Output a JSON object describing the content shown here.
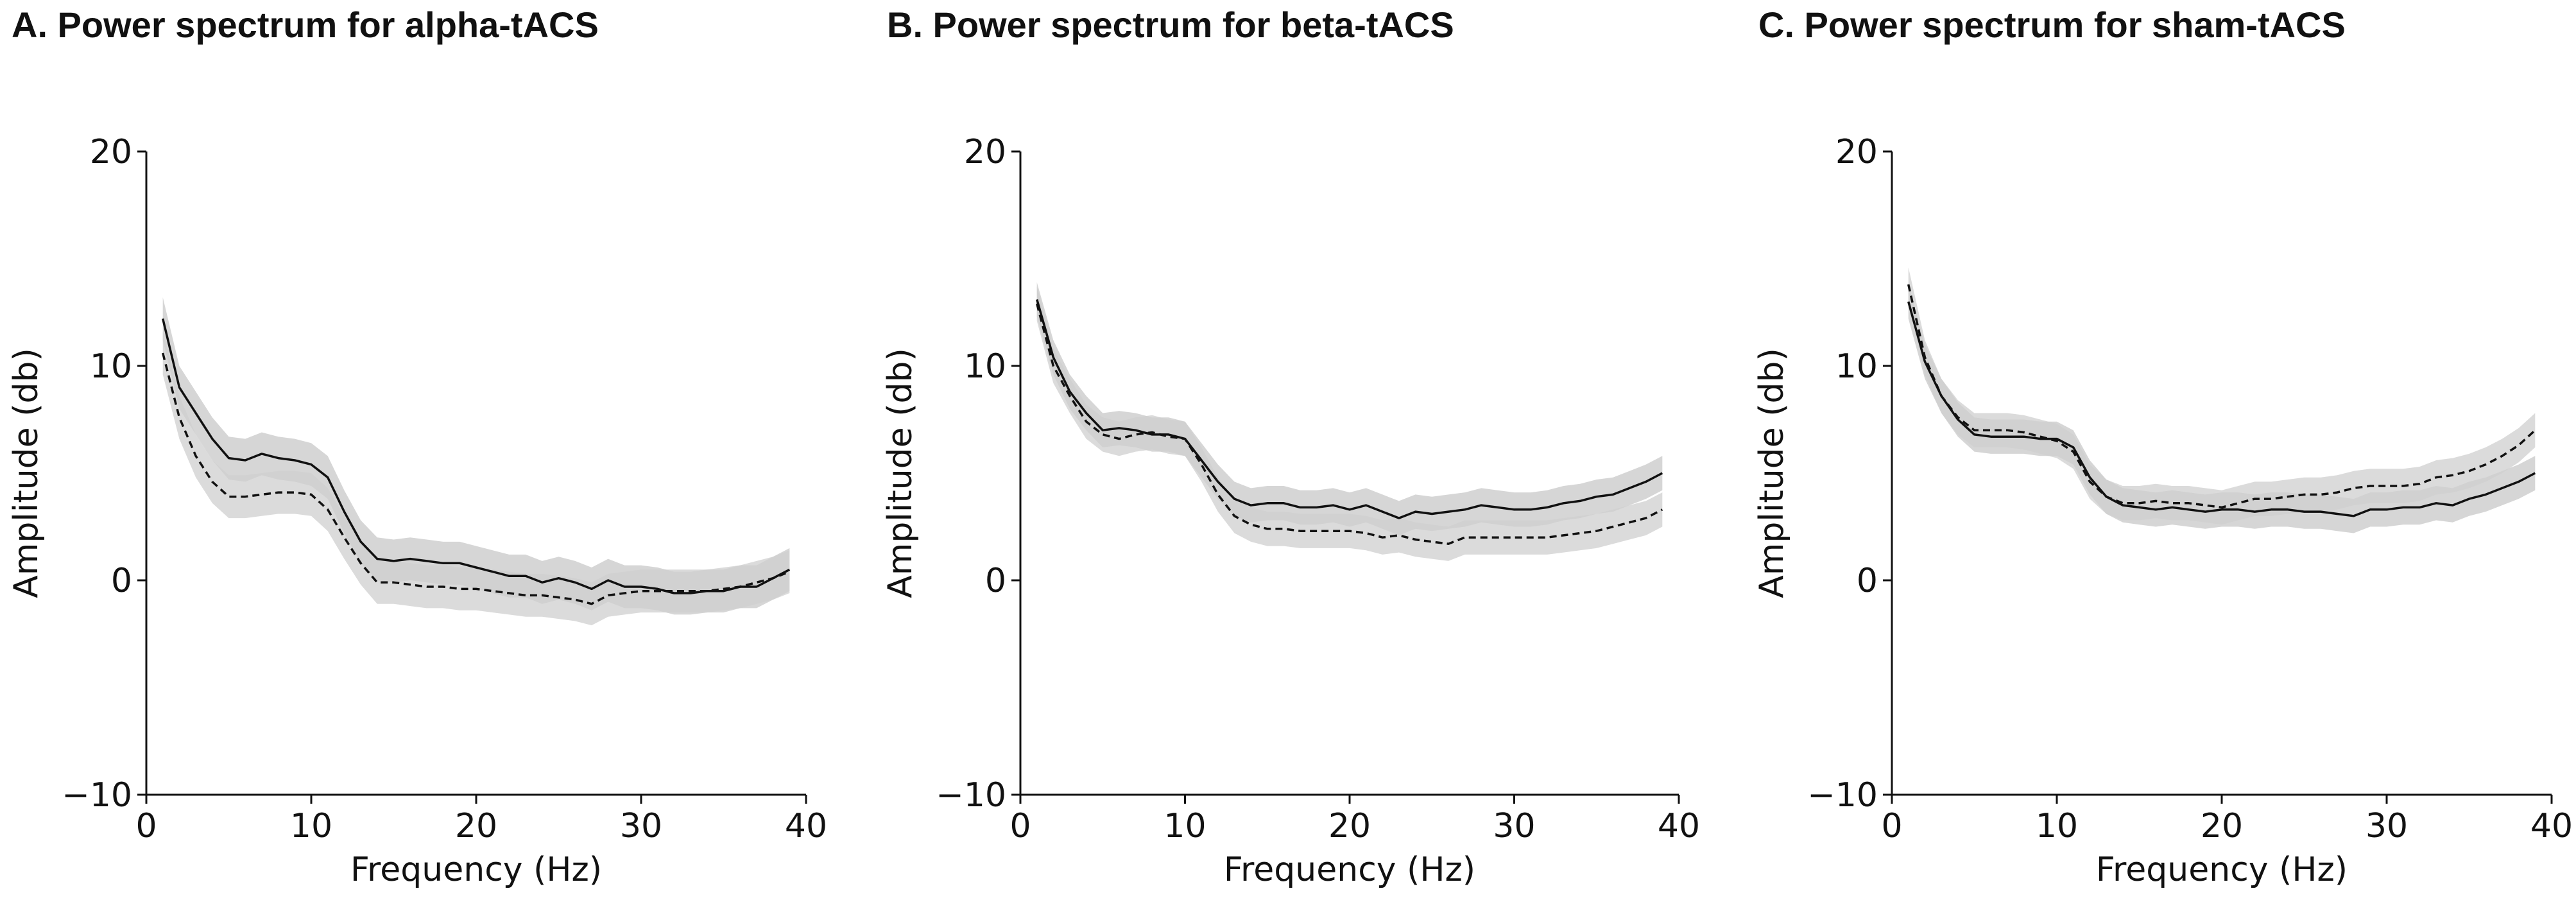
{
  "colors": {
    "line": "#111111",
    "band_outer": "#cfcfcf",
    "band_inner": "#b4b4b4",
    "background": "#ffffff"
  },
  "chart_data": [
    {
      "type": "line",
      "title": "A. Power spectrum for alpha-tACS",
      "xlabel": "Frequency (Hz)",
      "ylabel": "Amplitude (db)",
      "xlim": [
        0,
        40
      ],
      "ylim": [
        -10,
        20
      ],
      "xticks": [
        0,
        10,
        20,
        30,
        40
      ],
      "yticks": [
        -10,
        0,
        10,
        20
      ],
      "xtick_labels": [
        "0",
        "10",
        "20",
        "30",
        "40"
      ],
      "ytick_labels": [
        "−10",
        "0",
        "10",
        "20"
      ],
      "series": [
        {
          "name": "solid",
          "style": "solid",
          "x": [
            1,
            2,
            3,
            4,
            5,
            6,
            7,
            8,
            9,
            10,
            11,
            12,
            13,
            14,
            15,
            16,
            17,
            18,
            19,
            20,
            21,
            22,
            23,
            24,
            25,
            26,
            27,
            28,
            29,
            30,
            31,
            32,
            33,
            34,
            35,
            36,
            37,
            38,
            39
          ],
          "y": [
            12.2,
            9.0,
            7.8,
            6.6,
            5.7,
            5.6,
            5.9,
            5.7,
            5.6,
            5.4,
            4.8,
            3.2,
            1.8,
            1.0,
            0.9,
            1.0,
            0.9,
            0.8,
            0.8,
            0.6,
            0.4,
            0.2,
            0.2,
            -0.1,
            0.1,
            -0.1,
            -0.4,
            0.0,
            -0.3,
            -0.3,
            -0.4,
            -0.6,
            -0.6,
            -0.5,
            -0.5,
            -0.3,
            -0.3,
            0.1,
            0.5
          ],
          "band": 1.0
        },
        {
          "name": "dashed",
          "style": "dashed",
          "x": [
            1,
            2,
            3,
            4,
            5,
            6,
            7,
            8,
            9,
            10,
            11,
            12,
            13,
            14,
            15,
            16,
            17,
            18,
            19,
            20,
            21,
            22,
            23,
            24,
            25,
            26,
            27,
            28,
            29,
            30,
            31,
            32,
            33,
            34,
            35,
            36,
            37,
            38,
            39
          ],
          "y": [
            10.6,
            7.6,
            5.8,
            4.6,
            3.9,
            3.9,
            4.0,
            4.1,
            4.1,
            4.0,
            3.3,
            2.0,
            0.8,
            -0.1,
            -0.1,
            -0.2,
            -0.3,
            -0.3,
            -0.4,
            -0.4,
            -0.5,
            -0.6,
            -0.7,
            -0.7,
            -0.8,
            -0.9,
            -1.1,
            -0.7,
            -0.6,
            -0.5,
            -0.5,
            -0.5,
            -0.5,
            -0.5,
            -0.4,
            -0.3,
            -0.1,
            0.1,
            0.4
          ],
          "band": 1.0
        }
      ]
    },
    {
      "type": "line",
      "title": "B. Power spectrum for beta-tACS",
      "xlabel": "Frequency (Hz)",
      "ylabel": "Amplitude (db)",
      "xlim": [
        0,
        40
      ],
      "ylim": [
        -10,
        20
      ],
      "xticks": [
        0,
        10,
        20,
        30,
        40
      ],
      "yticks": [
        -10,
        0,
        10,
        20
      ],
      "xtick_labels": [
        "0",
        "10",
        "20",
        "30",
        "40"
      ],
      "ytick_labels": [
        "−10",
        "0",
        "10",
        "20"
      ],
      "series": [
        {
          "name": "solid",
          "style": "solid",
          "x": [
            1,
            2,
            3,
            4,
            5,
            6,
            7,
            8,
            9,
            10,
            11,
            12,
            13,
            14,
            15,
            16,
            17,
            18,
            19,
            20,
            21,
            22,
            23,
            24,
            25,
            26,
            27,
            28,
            29,
            30,
            31,
            32,
            33,
            34,
            35,
            36,
            37,
            38,
            39
          ],
          "y": [
            13.1,
            10.4,
            8.8,
            7.8,
            7.0,
            7.1,
            7.0,
            6.8,
            6.8,
            6.6,
            5.6,
            4.6,
            3.8,
            3.5,
            3.6,
            3.6,
            3.4,
            3.4,
            3.5,
            3.3,
            3.5,
            3.2,
            2.9,
            3.2,
            3.1,
            3.2,
            3.3,
            3.5,
            3.4,
            3.3,
            3.3,
            3.4,
            3.6,
            3.7,
            3.9,
            4.0,
            4.3,
            4.6,
            5.0
          ],
          "band": 0.8
        },
        {
          "name": "dashed",
          "style": "dashed",
          "x": [
            1,
            2,
            3,
            4,
            5,
            6,
            7,
            8,
            9,
            10,
            11,
            12,
            13,
            14,
            15,
            16,
            17,
            18,
            19,
            20,
            21,
            22,
            23,
            24,
            25,
            26,
            27,
            28,
            29,
            30,
            31,
            32,
            33,
            34,
            35,
            36,
            37,
            38,
            39
          ],
          "y": [
            12.9,
            10.0,
            8.6,
            7.4,
            6.8,
            6.6,
            6.8,
            6.9,
            6.7,
            6.6,
            5.4,
            4.0,
            3.0,
            2.6,
            2.4,
            2.4,
            2.3,
            2.3,
            2.3,
            2.3,
            2.2,
            2.0,
            2.1,
            1.9,
            1.8,
            1.7,
            2.0,
            2.0,
            2.0,
            2.0,
            2.0,
            2.0,
            2.1,
            2.2,
            2.3,
            2.5,
            2.7,
            2.9,
            3.3
          ],
          "band": 0.8
        }
      ]
    },
    {
      "type": "line",
      "title": "C. Power spectrum for sham-tACS",
      "xlabel": "Frequency (Hz)",
      "ylabel": "Amplitude (db)",
      "xlim": [
        0,
        40
      ],
      "ylim": [
        -10,
        20
      ],
      "xticks": [
        0,
        10,
        20,
        30,
        40
      ],
      "yticks": [
        -10,
        0,
        10,
        20
      ],
      "xtick_labels": [
        "0",
        "10",
        "20",
        "30",
        "40"
      ],
      "ytick_labels": [
        "−10",
        "0",
        "10",
        "20"
      ],
      "series": [
        {
          "name": "solid",
          "style": "solid",
          "x": [
            1,
            2,
            3,
            4,
            5,
            6,
            7,
            8,
            9,
            10,
            11,
            12,
            13,
            14,
            15,
            16,
            17,
            18,
            19,
            20,
            21,
            22,
            23,
            24,
            25,
            26,
            27,
            28,
            29,
            30,
            31,
            32,
            33,
            34,
            35,
            36,
            37,
            38,
            39
          ],
          "y": [
            13.0,
            10.2,
            8.6,
            7.5,
            6.8,
            6.7,
            6.7,
            6.7,
            6.6,
            6.6,
            6.2,
            4.8,
            3.9,
            3.5,
            3.4,
            3.3,
            3.4,
            3.3,
            3.2,
            3.3,
            3.3,
            3.2,
            3.3,
            3.3,
            3.2,
            3.2,
            3.1,
            3.0,
            3.3,
            3.3,
            3.4,
            3.4,
            3.6,
            3.5,
            3.8,
            4.0,
            4.3,
            4.6,
            5.0
          ],
          "band": 0.8
        },
        {
          "name": "dashed",
          "style": "dashed",
          "x": [
            1,
            2,
            3,
            4,
            5,
            6,
            7,
            8,
            9,
            10,
            11,
            12,
            13,
            14,
            15,
            16,
            17,
            18,
            19,
            20,
            21,
            22,
            23,
            24,
            25,
            26,
            27,
            28,
            29,
            30,
            31,
            32,
            33,
            34,
            35,
            36,
            37,
            38,
            39
          ],
          "y": [
            13.8,
            10.4,
            8.6,
            7.6,
            7.0,
            7.0,
            7.0,
            6.9,
            6.7,
            6.5,
            6.0,
            4.6,
            3.9,
            3.6,
            3.6,
            3.7,
            3.6,
            3.6,
            3.5,
            3.4,
            3.6,
            3.8,
            3.8,
            3.9,
            4.0,
            4.0,
            4.1,
            4.3,
            4.4,
            4.4,
            4.4,
            4.5,
            4.8,
            4.9,
            5.1,
            5.4,
            5.8,
            6.3,
            7.0
          ],
          "band": 0.8
        }
      ]
    }
  ]
}
